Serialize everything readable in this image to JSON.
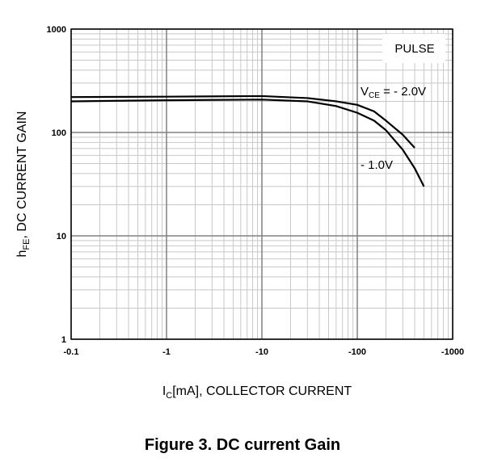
{
  "chart_data": {
    "type": "line",
    "title": "Figure 3. DC current Gain",
    "x_label": [
      "I",
      "C",
      "[mA], COLLECTOR CURRENT"
    ],
    "y_label": [
      "h",
      "FE",
      ", DC CURRENT GAIN"
    ],
    "annotation": "PULSE",
    "series_label_prefix": [
      "V",
      "CE",
      " = "
    ],
    "xscale": "log",
    "yscale": "log",
    "grid": true,
    "xlim": [
      -0.1,
      -1000
    ],
    "ylim": [
      1,
      1000
    ],
    "xticks": [
      -0.1,
      -1,
      -10,
      -100,
      -1000
    ],
    "yticks": [
      1,
      10,
      100,
      1000
    ],
    "series": [
      {
        "name": "- 2.0V",
        "color": "#000000",
        "x": [
          -0.1,
          -1,
          -10,
          -30,
          -60,
          -100,
          -150,
          -200,
          -300,
          -400
        ],
        "values": [
          220,
          222,
          225,
          215,
          200,
          185,
          160,
          130,
          95,
          71
        ]
      },
      {
        "name": "- 1.0V",
        "color": "#000000",
        "x": [
          -0.1,
          -1,
          -10,
          -30,
          -60,
          -100,
          -150,
          -200,
          -300,
          -400,
          -500
        ],
        "values": [
          200,
          205,
          208,
          200,
          180,
          155,
          130,
          105,
          68,
          45,
          30
        ]
      }
    ]
  }
}
